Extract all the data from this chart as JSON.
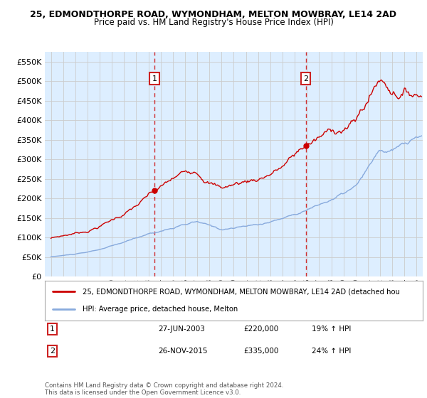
{
  "title_line1": "25, EDMONDTHORPE ROAD, WYMONDHAM, MELTON MOWBRAY, LE14 2AD",
  "title_line2": "Price paid vs. HM Land Registry's House Price Index (HPI)",
  "ytick_values": [
    0,
    50000,
    100000,
    150000,
    200000,
    250000,
    300000,
    350000,
    400000,
    450000,
    500000,
    550000
  ],
  "ylim": [
    0,
    575000
  ],
  "xlim_start": 1994.5,
  "xlim_end": 2025.5,
  "marker1_x": 2003.49,
  "marker1_y": 220000,
  "marker2_x": 2015.9,
  "marker2_y": 335000,
  "sale_color": "#cc0000",
  "hpi_color": "#88aadd",
  "annotation_box_color": "#cc2222",
  "legend_label_sale": "25, EDMONDTHORPE ROAD, WYMONDHAM, MELTON MOWBRAY, LE14 2AD (detached hou",
  "legend_label_hpi": "HPI: Average price, detached house, Melton",
  "table_data": [
    [
      "1",
      "27-JUN-2003",
      "£220,000",
      "19% ↑ HPI"
    ],
    [
      "2",
      "26-NOV-2015",
      "£335,000",
      "24% ↑ HPI"
    ]
  ],
  "footnote": "Contains HM Land Registry data © Crown copyright and database right 2024.\nThis data is licensed under the Open Government Licence v3.0.",
  "background_color": "#ffffff",
  "grid_color": "#cccccc",
  "plot_bg_color": "#ddeeff"
}
